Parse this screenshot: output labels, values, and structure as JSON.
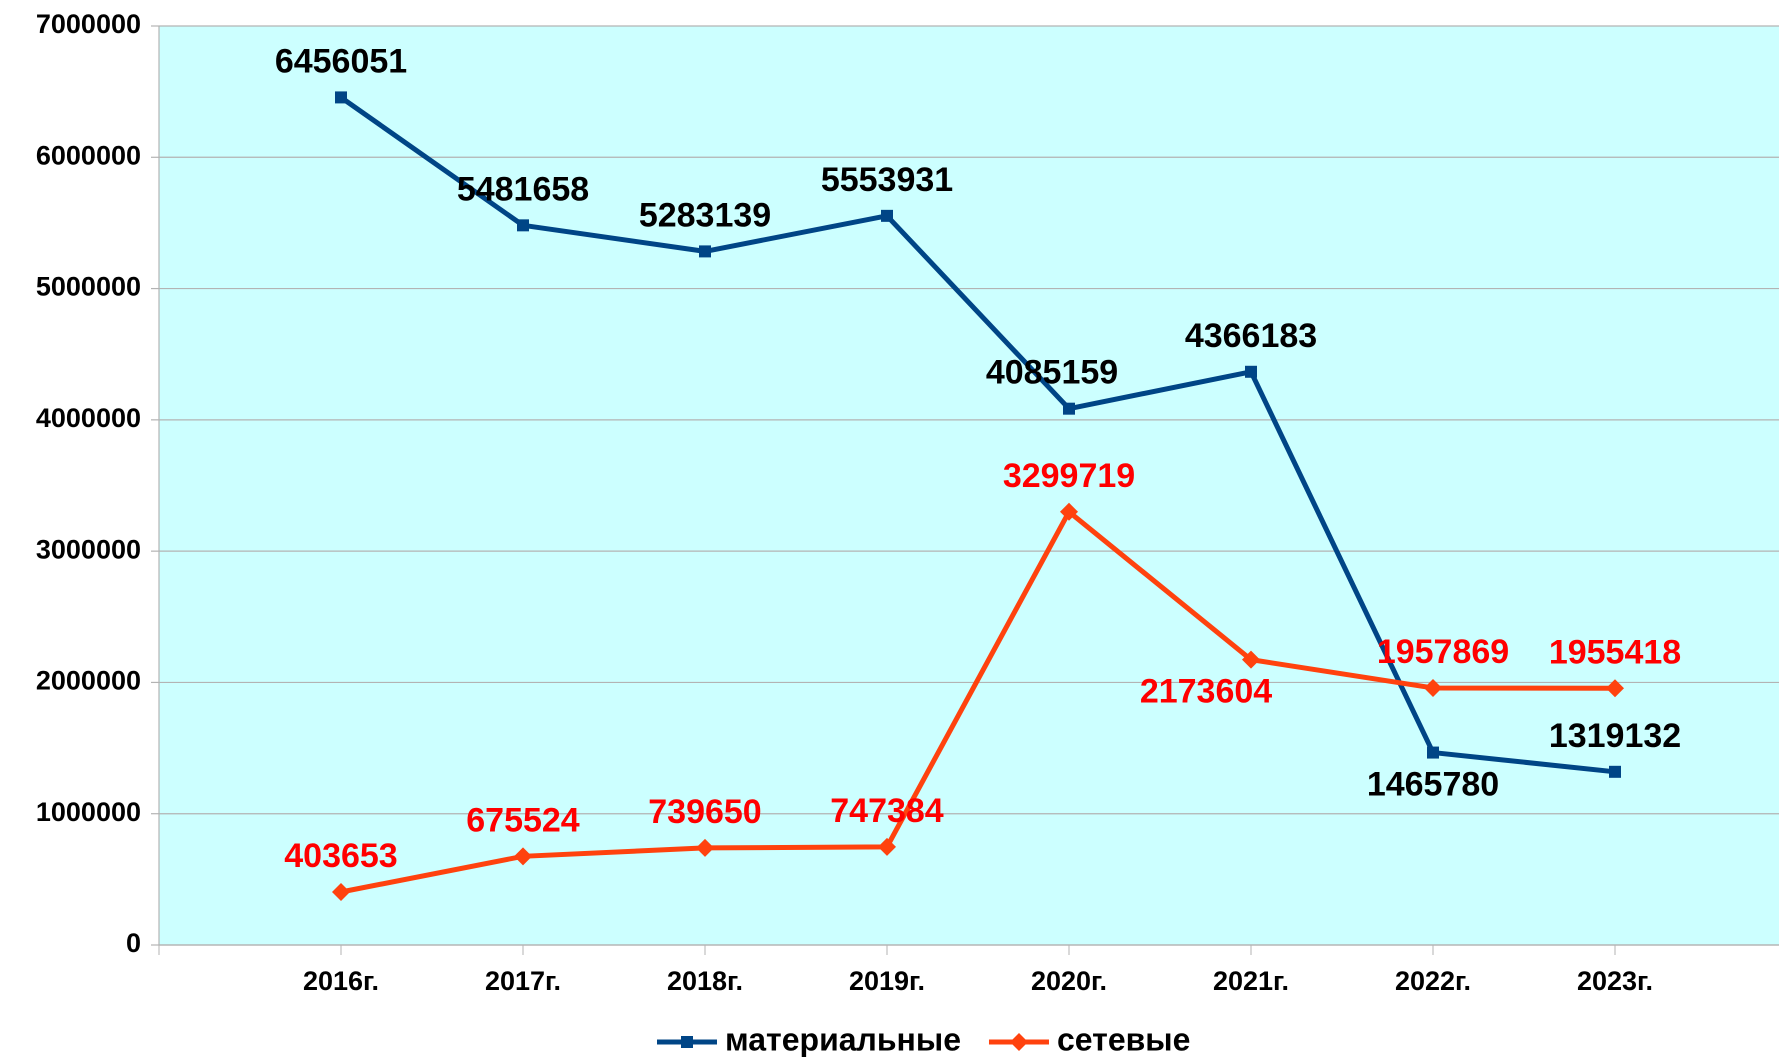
{
  "chart_data": {
    "type": "line",
    "categories": [
      "2016г.",
      "2017г.",
      "2018г.",
      "2019г.",
      "2020г.",
      "2021г.",
      "2022г.",
      "2023г."
    ],
    "series": [
      {
        "name": "материальные",
        "color": "#004586",
        "marker": "square",
        "values": [
          6456051,
          5481658,
          5283139,
          5553931,
          4085159,
          4366183,
          1465780,
          1319132
        ]
      },
      {
        "name": "сетевые",
        "color": "#ff420e",
        "marker": "diamond",
        "values": [
          403653,
          675524,
          739650,
          747384,
          3299719,
          2173604,
          1957869,
          1955418
        ]
      }
    ],
    "ylim": [
      0,
      7000000
    ],
    "yticks": [
      0,
      1000000,
      2000000,
      3000000,
      4000000,
      5000000,
      6000000,
      7000000
    ],
    "grid": true,
    "legend": "bottom"
  }
}
